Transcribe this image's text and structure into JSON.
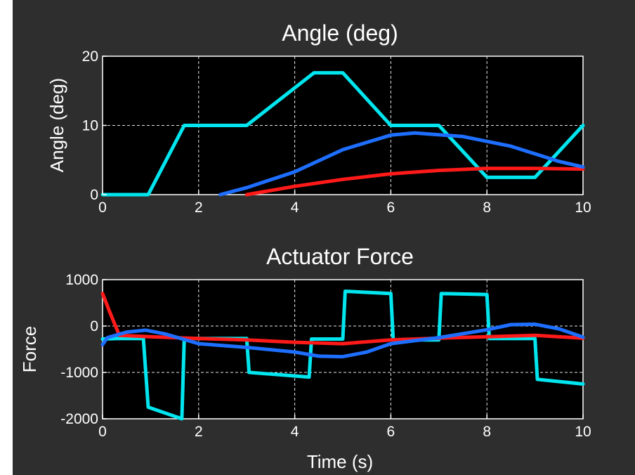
{
  "colors": {
    "figure_bg": "#2e2e2e",
    "axes_bg": "#000000",
    "foreground": "#ffffff",
    "cyan": "#00e5ee",
    "blue": "#1e6fff",
    "red": "#ff1a1a"
  },
  "chart_data": [
    {
      "type": "line",
      "title": "Angle (deg)",
      "xlabel": "",
      "ylabel": "Angle (deg)",
      "xlim": [
        0,
        10
      ],
      "ylim": [
        0,
        20
      ],
      "xticks": [
        "0",
        "2",
        "4",
        "6",
        "8",
        "10"
      ],
      "yticks": [
        "0",
        "10",
        "20"
      ],
      "xtick_values": [
        0,
        2,
        4,
        6,
        8,
        10
      ],
      "ytick_values": [
        0,
        10,
        20
      ],
      "grid": true,
      "series": [
        {
          "color": "#00e5ee",
          "points": [
            [
              0,
              0
            ],
            [
              0.95,
              0
            ],
            [
              1.7,
              10
            ],
            [
              3.0,
              10
            ],
            [
              4.4,
              17.6
            ],
            [
              5.0,
              17.6
            ],
            [
              6.0,
              10
            ],
            [
              7.0,
              10
            ],
            [
              8.0,
              2.5
            ],
            [
              9.0,
              2.5
            ],
            [
              10.0,
              10
            ]
          ]
        },
        {
          "color": "#ff1a1a",
          "points": [
            [
              3.0,
              0
            ],
            [
              4.0,
              1.2
            ],
            [
              5.0,
              2.2
            ],
            [
              6.0,
              3.0
            ],
            [
              7.0,
              3.5
            ],
            [
              8.0,
              3.8
            ],
            [
              9.0,
              3.8
            ],
            [
              10.0,
              3.7
            ]
          ]
        },
        {
          "color": "#1e6fff",
          "points": [
            [
              2.45,
              0
            ],
            [
              3.0,
              1.0
            ],
            [
              4.0,
              3.3
            ],
            [
              5.0,
              6.5
            ],
            [
              6.0,
              8.6
            ],
            [
              6.5,
              8.9
            ],
            [
              7.5,
              8.4
            ],
            [
              8.5,
              7.0
            ],
            [
              9.5,
              4.8
            ],
            [
              10.0,
              4.0
            ]
          ]
        }
      ]
    },
    {
      "type": "line",
      "title": "Actuator Force",
      "xlabel": "Time (s)",
      "ylabel": "Force",
      "xlim": [
        0,
        10
      ],
      "ylim": [
        -2000,
        1000
      ],
      "xticks": [
        "0",
        "2",
        "4",
        "6",
        "8",
        "10"
      ],
      "yticks": [
        "-2000",
        "-1000",
        "0",
        "1000"
      ],
      "xtick_values": [
        0,
        2,
        4,
        6,
        8,
        10
      ],
      "ytick_values": [
        -2000,
        -1000,
        0,
        1000
      ],
      "grid": true,
      "series": [
        {
          "color": "#00e5ee",
          "points": [
            [
              0,
              -280
            ],
            [
              0.3,
              -270
            ],
            [
              0.85,
              -270
            ],
            [
              0.95,
              -1750
            ],
            [
              1.65,
              -2000
            ],
            [
              1.7,
              -270
            ],
            [
              3.0,
              -270
            ],
            [
              3.05,
              -1000
            ],
            [
              4.3,
              -1100
            ],
            [
              4.35,
              -280
            ],
            [
              5.0,
              -280
            ],
            [
              5.05,
              750
            ],
            [
              6.0,
              700
            ],
            [
              6.05,
              -300
            ],
            [
              7.0,
              -300
            ],
            [
              7.05,
              700
            ],
            [
              8.0,
              680
            ],
            [
              8.05,
              -270
            ],
            [
              9.0,
              -270
            ],
            [
              9.05,
              -1150
            ],
            [
              10.0,
              -1250
            ]
          ]
        },
        {
          "color": "#ff1a1a",
          "points": [
            [
              0,
              700
            ],
            [
              0.15,
              300
            ],
            [
              0.35,
              -200
            ],
            [
              1.0,
              -230
            ],
            [
              2.0,
              -270
            ],
            [
              3.0,
              -300
            ],
            [
              4.0,
              -350
            ],
            [
              5.0,
              -380
            ],
            [
              6.0,
              -300
            ],
            [
              7.0,
              -260
            ],
            [
              8.0,
              -230
            ],
            [
              9.0,
              -200
            ],
            [
              10.0,
              -260
            ]
          ]
        },
        {
          "color": "#1e6fff",
          "points": [
            [
              0,
              -400
            ],
            [
              0.1,
              -250
            ],
            [
              0.5,
              -130
            ],
            [
              0.9,
              -90
            ],
            [
              1.3,
              -170
            ],
            [
              2.0,
              -380
            ],
            [
              3.0,
              -460
            ],
            [
              4.0,
              -560
            ],
            [
              4.5,
              -650
            ],
            [
              5.0,
              -660
            ],
            [
              5.5,
              -560
            ],
            [
              6.0,
              -380
            ],
            [
              7.0,
              -250
            ],
            [
              8.0,
              -80
            ],
            [
              8.5,
              30
            ],
            [
              9.0,
              40
            ],
            [
              9.5,
              -60
            ],
            [
              10.0,
              -240
            ]
          ]
        }
      ]
    }
  ]
}
